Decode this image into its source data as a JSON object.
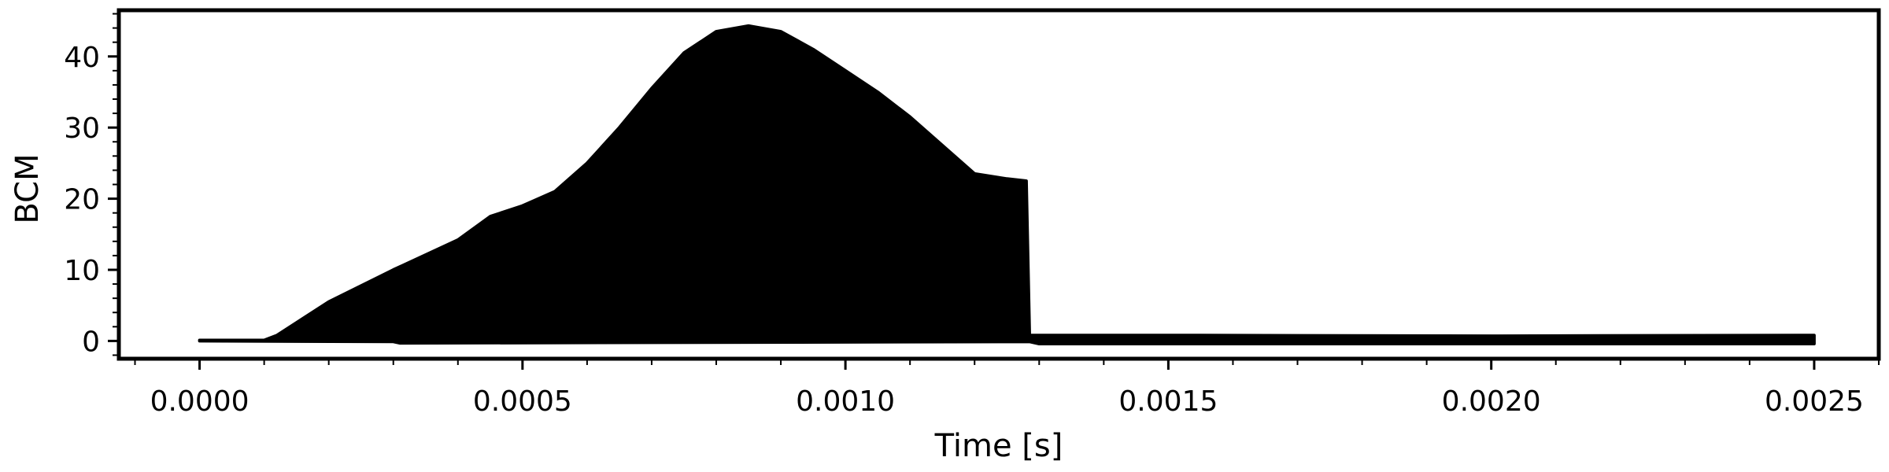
{
  "chart_data": {
    "type": "area",
    "title": "",
    "xlabel": "Time [s]",
    "ylabel": "BCM",
    "xlim": [
      -0.000125,
      0.0026
    ],
    "ylim": [
      -2.5,
      46.5
    ],
    "grid": false,
    "x_ticks": [
      0.0,
      0.0005,
      0.001,
      0.0015,
      0.002,
      0.0025
    ],
    "x_tick_labels": [
      "0.0000",
      "0.0005",
      "0.0010",
      "0.0015",
      "0.0020",
      "0.0025"
    ],
    "y_ticks": [
      0,
      10,
      20,
      30,
      40
    ],
    "y_tick_labels": [
      "0",
      "10",
      "20",
      "30",
      "40"
    ],
    "series": [
      {
        "color": "#000000",
        "upper_envelope": {
          "x": [
            0.0,
            0.0001,
            0.00012,
            0.0002,
            0.0003,
            0.0004,
            0.00045,
            0.0005,
            0.00055,
            0.0006,
            0.00065,
            0.0007,
            0.00075,
            0.0008,
            0.00085,
            0.0009,
            0.00095,
            0.001,
            0.00105,
            0.0011,
            0.00115,
            0.0012,
            0.00125,
            0.00128,
            0.001285,
            0.0013,
            0.0015,
            0.002,
            0.0025
          ],
          "y": [
            0.1,
            0.1,
            0.8,
            5.5,
            10.0,
            14.2,
            17.5,
            19.0,
            21.0,
            25.0,
            30.0,
            35.5,
            40.5,
            43.5,
            44.3,
            43.5,
            41.0,
            38.0,
            35.0,
            31.5,
            27.5,
            23.5,
            22.8,
            22.5,
            0.8,
            0.8,
            0.8,
            0.7,
            0.8
          ]
        },
        "lower_envelope": {
          "x": [
            0.0,
            0.0003,
            0.00031,
            0.001285,
            0.0013,
            0.0015,
            0.002,
            0.0025
          ],
          "y": [
            0.0,
            -0.1,
            -0.3,
            -0.1,
            -0.4,
            -0.4,
            -0.4,
            -0.4
          ]
        }
      }
    ]
  }
}
